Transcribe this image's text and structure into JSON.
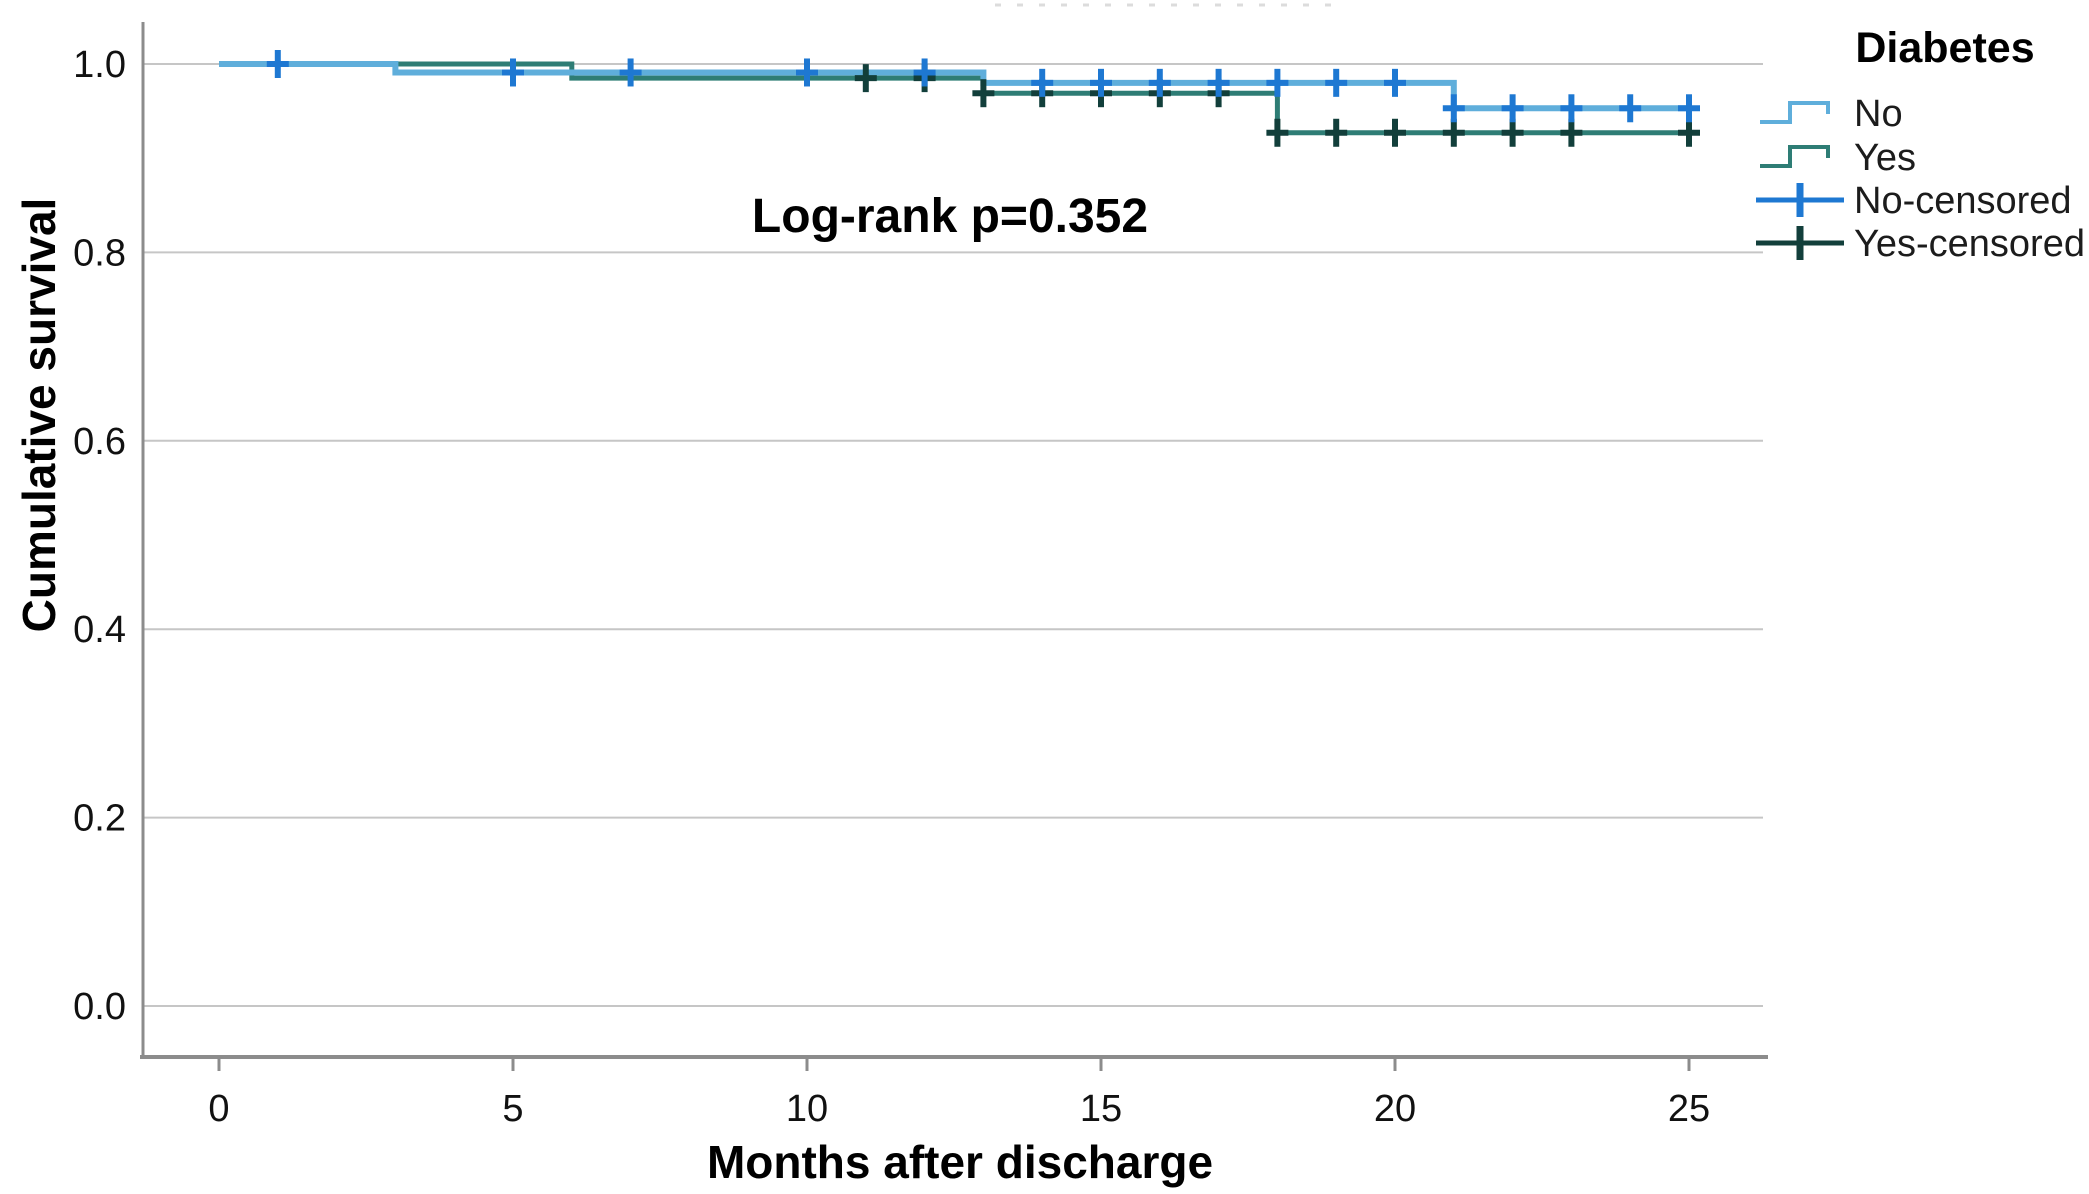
{
  "chart_data": {
    "type": "line",
    "subtype": "kaplan-meier-step-function",
    "title": "",
    "annotation": "Log-rank p=0.352",
    "p_value": 0.352,
    "xlabel": "Months after discharge",
    "ylabel": "Cumulative survival",
    "x_ticks": [
      0,
      5,
      10,
      15,
      20,
      25
    ],
    "y_ticks": [
      0.0,
      0.2,
      0.4,
      0.6,
      0.8,
      1.0
    ],
    "xlim": [
      -1.3,
      26.3
    ],
    "ylim": [
      -0.055,
      1.07
    ],
    "grid": "horizontal-gridlines-on",
    "axis_color": "#8c8c8c",
    "gridline_color": "#c6c6c6",
    "legend": {
      "title": "Diabetes",
      "position": "top-right",
      "entries": [
        {
          "label": "No",
          "type": "step-line",
          "color": "#5FAEDB"
        },
        {
          "label": "Yes",
          "type": "step-line",
          "color": "#2E7D75"
        },
        {
          "label": "No-censored",
          "type": "censor-mark",
          "color": "#1E78D2"
        },
        {
          "label": "Yes-censored",
          "type": "censor-mark",
          "color": "#123F3B"
        }
      ]
    },
    "series": [
      {
        "name": "No",
        "color": "#5FAEDB",
        "censor_color": "#1E78D2",
        "steps": [
          [
            0,
            1.0
          ],
          [
            3,
            0.991
          ],
          [
            13,
            0.98
          ],
          [
            21,
            0.953
          ]
        ],
        "end_x": 25.05,
        "censored": [
          [
            1,
            1.0
          ],
          [
            5,
            0.991
          ],
          [
            7,
            0.991
          ],
          [
            10,
            0.991
          ],
          [
            12,
            0.991
          ],
          [
            14,
            0.98
          ],
          [
            15,
            0.98
          ],
          [
            16,
            0.98
          ],
          [
            17,
            0.98
          ],
          [
            18,
            0.98
          ],
          [
            19,
            0.98
          ],
          [
            20,
            0.98
          ],
          [
            21,
            0.953
          ],
          [
            22,
            0.953
          ],
          [
            23,
            0.953
          ],
          [
            24,
            0.953
          ],
          [
            25,
            0.953
          ]
        ]
      },
      {
        "name": "Yes",
        "color": "#2E7D75",
        "censor_color": "#123F3B",
        "steps": [
          [
            0,
            1.0
          ],
          [
            6,
            0.985
          ],
          [
            13,
            0.969
          ],
          [
            18,
            0.927
          ]
        ],
        "end_x": 25.12,
        "censored": [
          [
            11,
            0.985
          ],
          [
            12,
            0.985
          ],
          [
            13,
            0.969
          ],
          [
            14,
            0.969
          ],
          [
            15,
            0.969
          ],
          [
            16,
            0.969
          ],
          [
            17,
            0.969
          ],
          [
            18,
            0.927
          ],
          [
            19,
            0.927
          ],
          [
            20,
            0.927
          ],
          [
            21,
            0.927
          ],
          [
            22,
            0.927
          ],
          [
            23,
            0.927
          ],
          [
            25,
            0.927
          ]
        ]
      }
    ]
  }
}
